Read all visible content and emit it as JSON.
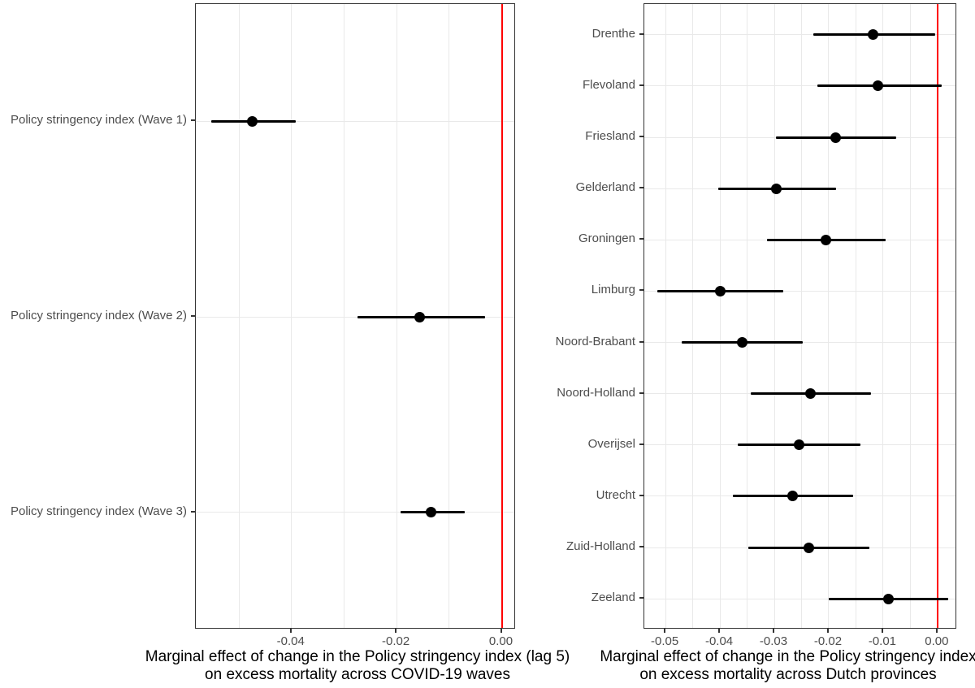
{
  "figure": {
    "background": "#ffffff",
    "panel_border_color": "#333333",
    "grid_color": "#e9e9e9",
    "reference_line_color": "#ff0000",
    "point_color": "#000000",
    "axis_text_color": "#4d4d4d",
    "caption_text_color": "#000000"
  },
  "chart_data": [
    {
      "type": "scatter",
      "subtype": "forest-pointrange",
      "title": "",
      "ylabel": "",
      "xlabel_line1": "Marginal effect of change in the Policy stringency index (lag 5)",
      "xlabel_line2": "on excess mortality across COVID-19 waves",
      "xlim": [
        -0.0582,
        0.0027
      ],
      "ref_line_x": 0,
      "grid": true,
      "x_ticks": [
        {
          "value": -0.04,
          "label": "-0.04"
        },
        {
          "value": -0.02,
          "label": "-0.02"
        },
        {
          "value": 0.0,
          "label": "0.00"
        }
      ],
      "x_minor": [
        -0.05,
        -0.03,
        -0.01
      ],
      "points": [
        {
          "label": "Policy stringency index (Wave 1)",
          "estimate": -0.0474,
          "ci_low": -0.0553,
          "ci_high": -0.0392
        },
        {
          "label": "Policy stringency index (Wave 2)",
          "estimate": -0.0156,
          "ci_low": -0.0275,
          "ci_high": -0.0031
        },
        {
          "label": "Policy stringency index (Wave 3)",
          "estimate": -0.0134,
          "ci_low": -0.0193,
          "ci_high": -0.007
        }
      ]
    },
    {
      "type": "scatter",
      "subtype": "forest-pointrange",
      "title": "",
      "ylabel": "",
      "xlabel_line1": "Marginal effect of change in the Policy stringency index",
      "xlabel_line2": "on excess mortality across Dutch provinces",
      "xlim": [
        -0.0539,
        0.0036
      ],
      "ref_line_x": 0,
      "grid": true,
      "x_ticks": [
        {
          "value": -0.05,
          "label": "-0.05"
        },
        {
          "value": -0.04,
          "label": "-0.04"
        },
        {
          "value": -0.03,
          "label": "-0.03"
        },
        {
          "value": -0.02,
          "label": "-0.02"
        },
        {
          "value": -0.01,
          "label": "-0.01"
        },
        {
          "value": 0.0,
          "label": "0.00"
        }
      ],
      "x_minor": [
        -0.045,
        -0.035,
        -0.025,
        -0.015,
        -0.005
      ],
      "points": [
        {
          "label": "Drenthe",
          "estimate": -0.0118,
          "ci_low": -0.0228,
          "ci_high": -0.0004
        },
        {
          "label": "Flevoland",
          "estimate": -0.0109,
          "ci_low": -0.0221,
          "ci_high": 0.0007
        },
        {
          "label": "Friesland",
          "estimate": -0.0188,
          "ci_low": -0.0297,
          "ci_high": -0.0076
        },
        {
          "label": "Gelderland",
          "estimate": -0.0296,
          "ci_low": -0.0403,
          "ci_high": -0.0187
        },
        {
          "label": "Groningen",
          "estimate": -0.0205,
          "ci_low": -0.0314,
          "ci_high": -0.0096
        },
        {
          "label": "Limburg",
          "estimate": -0.0399,
          "ci_low": -0.0515,
          "ci_high": -0.0284
        },
        {
          "label": "Noord-Brabant",
          "estimate": -0.0359,
          "ci_low": -0.047,
          "ci_high": -0.0248
        },
        {
          "label": "Noord-Holland",
          "estimate": -0.0233,
          "ci_low": -0.0343,
          "ci_high": -0.0122
        },
        {
          "label": "Overijsel",
          "estimate": -0.0254,
          "ci_low": -0.0367,
          "ci_high": -0.0142
        },
        {
          "label": "Utrecht",
          "estimate": -0.0267,
          "ci_low": -0.0376,
          "ci_high": -0.0155
        },
        {
          "label": "Zuid-Holland",
          "estimate": -0.0237,
          "ci_low": -0.0348,
          "ci_high": -0.0125
        },
        {
          "label": "Zeeland",
          "estimate": -0.009,
          "ci_low": -0.02,
          "ci_high": 0.0019
        }
      ]
    }
  ]
}
